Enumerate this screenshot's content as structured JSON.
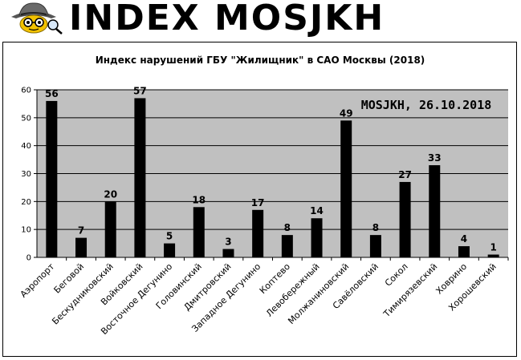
{
  "banner": {
    "title": "INDEX MOSJKH",
    "logo_icon": "spy-detective-icon"
  },
  "chart_data": {
    "type": "bar",
    "title": "Индекс нарушений ГБУ \"Жилищник\" в САО Москвы (2018)",
    "annotation": "MOSJKH, 26.10.2018",
    "categories": [
      "Аэропорт",
      "Беговой",
      "Бескудниковский",
      "Войковский",
      "Восточное Дегунино",
      "Головинский",
      "Дмитровский",
      "Западное Дегунино",
      "Коптево",
      "Левобережный",
      "Молжаниновский",
      "Савёловский",
      "Сокол",
      "Тимирязевский",
      "Ховрино",
      "Хорошевский"
    ],
    "values": [
      56,
      7,
      20,
      57,
      5,
      18,
      3,
      17,
      8,
      14,
      49,
      8,
      27,
      33,
      4,
      1
    ],
    "ylim": [
      0,
      60
    ],
    "yticks": [
      0,
      10,
      20,
      30,
      40,
      50,
      60
    ],
    "grid": true,
    "bar_color": "#000000",
    "plot_background": "#c0c0c0"
  }
}
